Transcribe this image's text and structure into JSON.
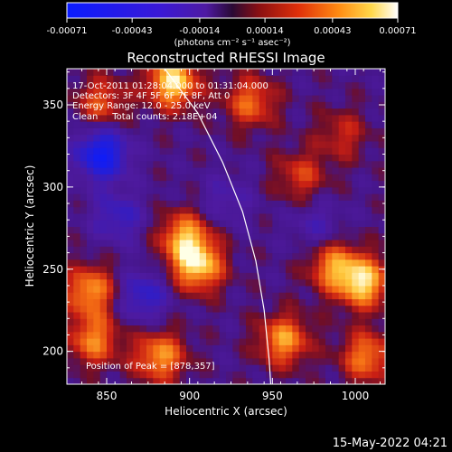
{
  "chart_data": {
    "type": "heatmap",
    "title": "Reconstructed RHESSI Image",
    "xlabel": "Heliocentric X (arcsec)",
    "ylabel": "Heliocentric Y (arcsec)",
    "xlim": [
      826,
      1018
    ],
    "ylim": [
      180,
      372
    ],
    "x_ticks": [
      850,
      900,
      950,
      1000
    ],
    "y_ticks": [
      200,
      250,
      300,
      350
    ],
    "colorbar": {
      "ticks": [
        "-0.00071",
        "-0.00043",
        "-0.00014",
        "0.00014",
        "0.00043",
        "0.00071"
      ],
      "tick_values": [
        -0.00071,
        -0.00043,
        -0.00014,
        0.00014,
        0.00043,
        0.00071
      ],
      "units_label": "(photons cm⁻² s⁻¹ asec⁻²)",
      "range": [
        -0.00071,
        0.00071
      ]
    },
    "annotations": {
      "time_range": "17-Oct-2011 01:28:04.000 to 01:31:04.000",
      "detectors": "Detectors: 3F 4F 5F 6F 7F 8F, Att 0",
      "energy": "Energy Range: 12.0 - 25.0 keV",
      "method": "Clean     Total counts: 2.18E+04",
      "peak": "Position of Peak = [878,357]"
    },
    "peak_position": [
      878,
      357
    ],
    "limb_curve": [
      [
        885,
        372
      ],
      [
        905,
        345
      ],
      [
        920,
        315
      ],
      [
        932,
        285
      ],
      [
        940,
        255
      ],
      [
        945,
        225
      ],
      [
        948,
        195
      ],
      [
        949,
        180
      ]
    ],
    "hotspots": [
      {
        "x": 888,
        "y": 362,
        "value": 0.00065
      },
      {
        "x": 903,
        "y": 250,
        "value": 0.0006
      },
      {
        "x": 895,
        "y": 268,
        "value": 0.0005
      },
      {
        "x": 838,
        "y": 235,
        "value": 0.0005
      },
      {
        "x": 840,
        "y": 205,
        "value": 0.00045
      },
      {
        "x": 1003,
        "y": 240,
        "value": 0.0006
      },
      {
        "x": 985,
        "y": 250,
        "value": 0.00045
      },
      {
        "x": 955,
        "y": 205,
        "value": 0.0005
      },
      {
        "x": 1005,
        "y": 195,
        "value": 0.00045
      },
      {
        "x": 935,
        "y": 350,
        "value": 0.0004
      },
      {
        "x": 965,
        "y": 305,
        "value": 0.0003
      },
      {
        "x": 880,
        "y": 195,
        "value": 0.0005
      },
      {
        "x": 845,
        "y": 350,
        "value": 0.00035
      },
      {
        "x": 990,
        "y": 330,
        "value": 0.00025
      }
    ],
    "coldspots": [
      {
        "x": 845,
        "y": 318,
        "value": -0.0006
      },
      {
        "x": 855,
        "y": 280,
        "value": -0.0003
      },
      {
        "x": 870,
        "y": 232,
        "value": -0.00035
      },
      {
        "x": 920,
        "y": 290,
        "value": -0.0002
      },
      {
        "x": 975,
        "y": 275,
        "value": -0.0002
      }
    ]
  },
  "footer": {
    "date": "15-May-2022 04:21"
  }
}
